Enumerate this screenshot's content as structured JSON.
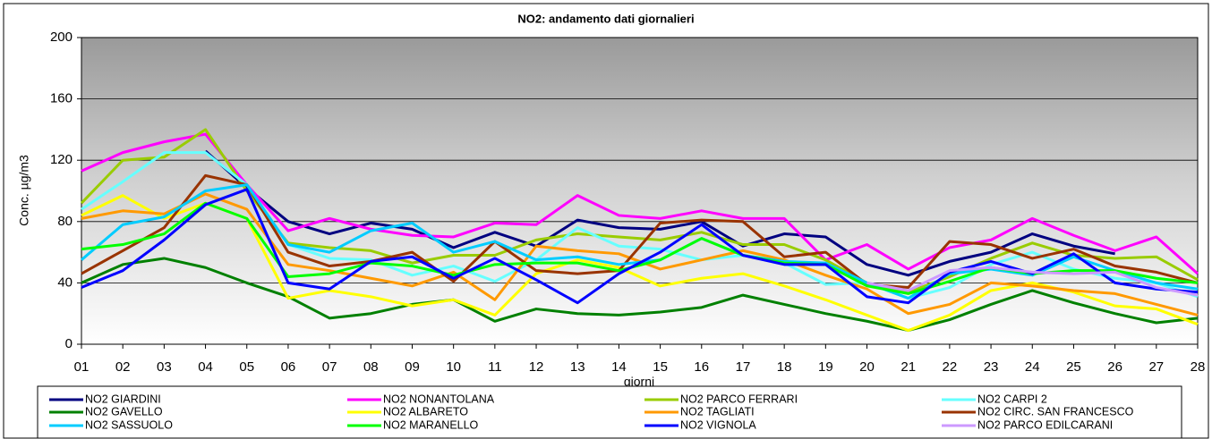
{
  "chart_data": {
    "type": "line",
    "title": "NO2: andamento dati giornalieri",
    "ylabel": "Conc. µg/m3",
    "xlabel": "giorni",
    "categories": [
      "01",
      "02",
      "03",
      "04",
      "05",
      "06",
      "07",
      "08",
      "09",
      "10",
      "11",
      "12",
      "13",
      "14",
      "15",
      "16",
      "17",
      "18",
      "19",
      "20",
      "21",
      "22",
      "23",
      "24",
      "25",
      "26",
      "27",
      "28"
    ],
    "ylim": [
      0,
      200
    ],
    "yticks": [
      0,
      40,
      80,
      120,
      160,
      200
    ],
    "grid": true,
    "series": [
      {
        "name": "NO2  GIARDINI",
        "color": "#000080",
        "values": [
          null,
          null,
          null,
          126,
          102,
          80,
          72,
          79,
          75,
          63,
          73,
          64,
          81,
          76,
          75,
          80,
          64,
          72,
          70,
          52,
          45,
          54,
          60,
          72,
          64,
          59,
          null,
          null
        ]
      },
      {
        "name": "NO2  NONANTOLANA",
        "color": "#ff00ff",
        "values": [
          113,
          125,
          132,
          137,
          104,
          74,
          82,
          75,
          71,
          70,
          79,
          78,
          97,
          84,
          82,
          87,
          82,
          82,
          55,
          65,
          49,
          63,
          68,
          82,
          71,
          61,
          70,
          46
        ]
      },
      {
        "name": "NO2  PARCO FERRARI",
        "color": "#99cc00",
        "values": [
          92,
          120,
          122,
          140,
          100,
          66,
          63,
          61,
          53,
          58,
          58,
          68,
          72,
          70,
          68,
          73,
          65,
          65,
          55,
          40,
          34,
          44,
          56,
          66,
          58,
          56,
          57,
          42
        ]
      },
      {
        "name": "NO2 CARPI 2",
        "color": "#66ffff",
        "values": [
          88,
          106,
          125,
          125,
          104,
          65,
          56,
          55,
          45,
          51,
          41,
          55,
          76,
          64,
          62,
          55,
          58,
          53,
          39,
          40,
          30,
          37,
          52,
          60,
          49,
          43,
          40,
          31
        ]
      },
      {
        "name": "NO2 GAVELLO",
        "color": "#008000",
        "values": [
          40,
          52,
          56,
          50,
          40,
          31,
          17,
          20,
          26,
          29,
          15,
          23,
          20,
          19,
          21,
          24,
          32,
          26,
          20,
          15,
          9,
          16,
          26,
          35,
          27,
          20,
          14,
          17
        ]
      },
      {
        "name": "NO2 ALBARETO",
        "color": "#ffff00",
        "values": [
          84,
          97,
          82,
          92,
          82,
          30,
          35,
          31,
          25,
          29,
          19,
          46,
          55,
          50,
          38,
          43,
          46,
          38,
          29,
          19,
          9,
          19,
          35,
          40,
          34,
          25,
          23,
          13
        ]
      },
      {
        "name": "NO2 TAGLIATI",
        "color": "#ff9900",
        "values": [
          82,
          87,
          85,
          98,
          88,
          52,
          48,
          43,
          38,
          47,
          29,
          64,
          61,
          59,
          49,
          55,
          61,
          55,
          45,
          36,
          20,
          26,
          40,
          38,
          35,
          33,
          26,
          19
        ]
      },
      {
        "name": "NO2 CIRC. SAN FRANCESCO",
        "color": "#993300",
        "values": [
          46,
          61,
          76,
          110,
          104,
          60,
          51,
          54,
          60,
          41,
          67,
          48,
          46,
          48,
          79,
          81,
          80,
          57,
          60,
          39,
          37,
          67,
          65,
          56,
          62,
          51,
          47,
          40
        ]
      },
      {
        "name": "NO2 SASSUOLO",
        "color": "#00ccff",
        "values": [
          55,
          78,
          83,
          100,
          104,
          65,
          60,
          74,
          79,
          60,
          67,
          55,
          57,
          52,
          55,
          69,
          58,
          54,
          53,
          40,
          30,
          46,
          49,
          45,
          57,
          48,
          40,
          36
        ]
      },
      {
        "name": "NO2 MARANELLO",
        "color": "#00ff00",
        "values": [
          62,
          65,
          72,
          92,
          82,
          44,
          46,
          53,
          51,
          45,
          52,
          53,
          53,
          48,
          55,
          69,
          58,
          53,
          52,
          38,
          33,
          41,
          50,
          46,
          48,
          48,
          43,
          40
        ]
      },
      {
        "name": "NO2 VIGNOLA",
        "color": "#0000ff",
        "values": [
          37,
          48,
          68,
          91,
          101,
          40,
          36,
          54,
          57,
          43,
          56,
          42,
          27,
          46,
          60,
          78,
          58,
          52,
          52,
          31,
          27,
          47,
          54,
          46,
          59,
          40,
          36,
          34
        ]
      },
      {
        "name": "NO2 PARCO EDILCARANI",
        "color": "#cc99ff",
        "values": [
          null,
          null,
          null,
          null,
          null,
          null,
          null,
          null,
          null,
          null,
          null,
          null,
          null,
          null,
          null,
          null,
          null,
          null,
          null,
          40,
          35,
          48,
          50,
          47,
          46,
          47,
          37,
          32
        ]
      }
    ]
  }
}
